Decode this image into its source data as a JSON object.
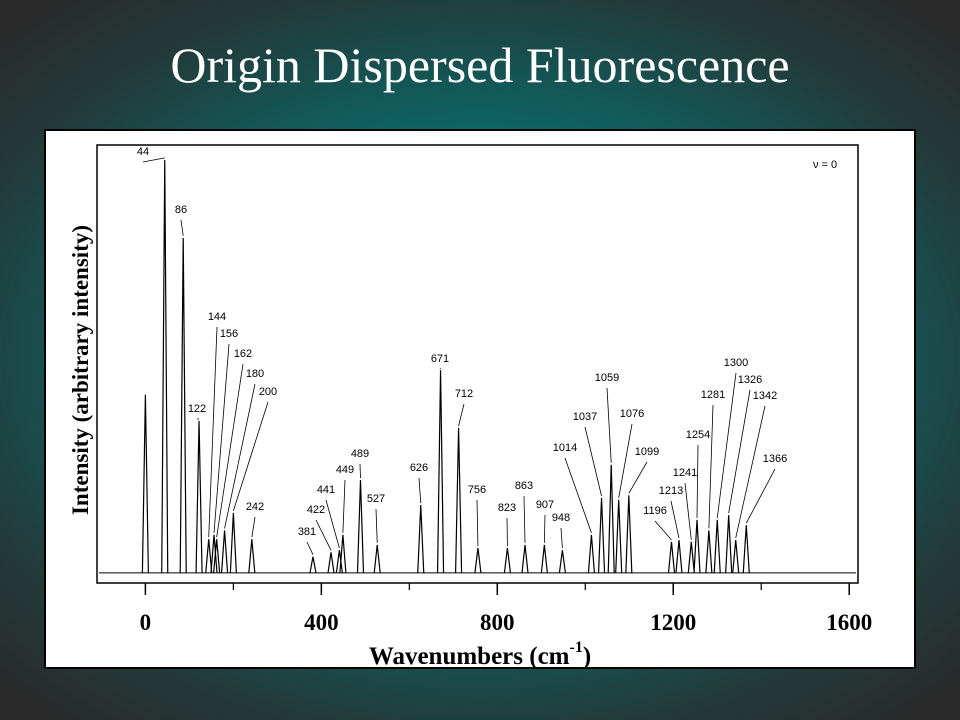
{
  "chart_data": {
    "type": "spectrum",
    "title": "Origin Dispersed Fluorescence",
    "x_label_parts": [
      "Wavenumbers (cm",
      "-1",
      ")"
    ],
    "y_label": "Intensity (arbitrary intensity)",
    "annotation": "ν = 0",
    "color": "#000000",
    "xlim": [
      -110,
      1620
    ],
    "xticks": [
      0,
      400,
      800,
      1200,
      1600
    ],
    "xminorticks": [
      200,
      600,
      1000,
      1400
    ],
    "ylim": [
      0,
      100
    ],
    "baseline": 2.3,
    "unlabeled_peaks": {
      "x": [
        0
      ],
      "values": [
        43
      ]
    },
    "peaks": {
      "x": [
        44,
        86,
        122,
        144,
        156,
        162,
        180,
        200,
        242,
        381,
        422,
        441,
        449,
        489,
        527,
        626,
        671,
        712,
        756,
        823,
        863,
        907,
        948,
        1014,
        1037,
        1059,
        1076,
        1099,
        1196,
        1213,
        1241,
        1254,
        1281,
        1300,
        1326,
        1342,
        1366
      ],
      "values": [
        96.6,
        78.8,
        37,
        10,
        11,
        10,
        12,
        16,
        10,
        6,
        7,
        7.5,
        11,
        23.5,
        8.7,
        17.8,
        48.6,
        35.4,
        8,
        8,
        8.7,
        8.7,
        7.5,
        11,
        19.4,
        27,
        19,
        20,
        9.4,
        9.8,
        9.4,
        14.4,
        12,
        14.4,
        15.5,
        9.8,
        13.2
      ]
    }
  }
}
